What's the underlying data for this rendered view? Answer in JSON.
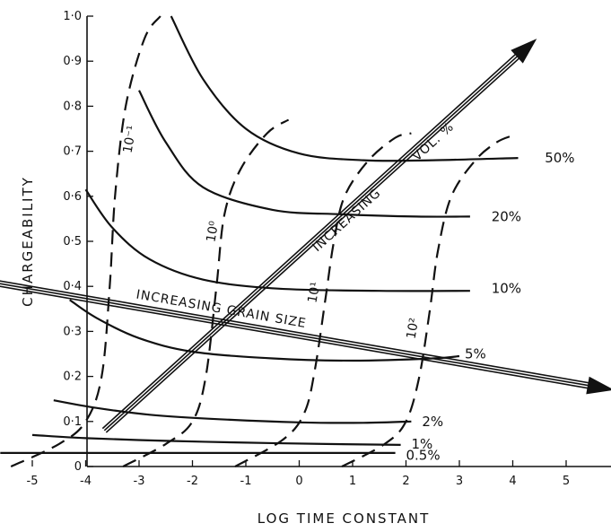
{
  "chart_data": {
    "type": "line",
    "title": "",
    "xlabel": "LOG TIME CONSTANT",
    "ylabel": "CHARGEABILITY",
    "xlim": [
      -6,
      6
    ],
    "ylim": [
      0,
      1.0
    ],
    "grid": false,
    "x_ticks": [
      {
        "value": -5,
        "label": "-5"
      },
      {
        "value": -4,
        "label": "-4"
      },
      {
        "value": -3,
        "label": "-3"
      },
      {
        "value": -2,
        "label": "-2"
      },
      {
        "value": -1,
        "label": "-1"
      },
      {
        "value": 0,
        "label": "0"
      },
      {
        "value": 1,
        "label": "1"
      },
      {
        "value": 2,
        "label": "2"
      },
      {
        "value": 3,
        "label": "3"
      },
      {
        "value": 4,
        "label": "4"
      },
      {
        "value": 5,
        "label": "5"
      }
    ],
    "y_ticks": [
      {
        "value": 0,
        "label": "0"
      },
      {
        "value": 0.1,
        "label": "0·1"
      },
      {
        "value": 0.2,
        "label": "0·2"
      },
      {
        "value": 0.3,
        "label": "0·3"
      },
      {
        "value": 0.4,
        "label": "0·4"
      },
      {
        "value": 0.5,
        "label": "0·5"
      },
      {
        "value": 0.6,
        "label": "0·6"
      },
      {
        "value": 0.7,
        "label": "0·7"
      },
      {
        "value": 0.8,
        "label": "0·8"
      },
      {
        "value": 0.9,
        "label": "0·9"
      },
      {
        "value": 1.0,
        "label": "1·0"
      }
    ],
    "solid_series": [
      {
        "name": "50%",
        "label_at": [
          4.6,
          0.685
        ],
        "points": [
          [
            -2.4,
            1.0
          ],
          [
            -1.8,
            0.86
          ],
          [
            -1.0,
            0.75
          ],
          [
            0.0,
            0.695
          ],
          [
            1.2,
            0.68
          ],
          [
            2.5,
            0.68
          ],
          [
            4.1,
            0.685
          ]
        ]
      },
      {
        "name": "20%",
        "label_at": [
          3.6,
          0.555
        ],
        "points": [
          [
            -3.0,
            0.835
          ],
          [
            -2.5,
            0.72
          ],
          [
            -1.8,
            0.62
          ],
          [
            -0.5,
            0.57
          ],
          [
            0.8,
            0.56
          ],
          [
            2.2,
            0.555
          ],
          [
            3.2,
            0.555
          ]
        ]
      },
      {
        "name": "10%",
        "label_at": [
          3.6,
          0.395
        ],
        "points": [
          [
            -4.0,
            0.615
          ],
          [
            -3.5,
            0.53
          ],
          [
            -2.8,
            0.46
          ],
          [
            -1.8,
            0.415
          ],
          [
            -0.4,
            0.395
          ],
          [
            1.5,
            0.39
          ],
          [
            3.2,
            0.39
          ]
        ]
      },
      {
        "name": "5%",
        "label_at": [
          3.1,
          0.25
        ],
        "points": [
          [
            -4.3,
            0.37
          ],
          [
            -3.8,
            0.33
          ],
          [
            -3.0,
            0.285
          ],
          [
            -2.0,
            0.255
          ],
          [
            -0.5,
            0.24
          ],
          [
            1.0,
            0.235
          ],
          [
            2.5,
            0.24
          ],
          [
            3.0,
            0.245
          ]
        ]
      },
      {
        "name": "2%",
        "label_at": [
          2.3,
          0.1
        ],
        "points": [
          [
            -4.6,
            0.147
          ],
          [
            -3.8,
            0.13
          ],
          [
            -2.8,
            0.115
          ],
          [
            -1.5,
            0.105
          ],
          [
            0.0,
            0.098
          ],
          [
            1.2,
            0.097
          ],
          [
            2.1,
            0.1
          ]
        ]
      },
      {
        "name": "1%",
        "label_at": [
          2.1,
          0.05
        ],
        "points": [
          [
            -5.0,
            0.07
          ],
          [
            -4.0,
            0.063
          ],
          [
            -2.5,
            0.057
          ],
          [
            -1.0,
            0.053
          ],
          [
            0.5,
            0.05
          ],
          [
            1.9,
            0.048
          ]
        ]
      },
      {
        "name": "0.5%",
        "label_at": [
          2.0,
          0.025
        ],
        "points": [
          [
            -5.6,
            0.03
          ],
          [
            -4.0,
            0.03
          ],
          [
            -2.0,
            0.03
          ],
          [
            0.0,
            0.03
          ],
          [
            1.8,
            0.03
          ]
        ]
      }
    ],
    "dashed_series": [
      {
        "name": "10⁻¹",
        "label_at": [
          -3.1,
          0.725
        ],
        "label_angle": -80,
        "points": [
          [
            -5.4,
            0.0
          ],
          [
            -4.5,
            0.05
          ],
          [
            -4.0,
            0.1
          ],
          [
            -3.7,
            0.2
          ],
          [
            -3.55,
            0.4
          ],
          [
            -3.45,
            0.6
          ],
          [
            -3.25,
            0.8
          ],
          [
            -2.9,
            0.95
          ],
          [
            -2.6,
            1.0
          ]
        ]
      },
      {
        "name": "10⁰",
        "label_at": [
          -1.55,
          0.52
        ],
        "label_angle": -80,
        "points": [
          [
            -3.3,
            0.0
          ],
          [
            -2.5,
            0.05
          ],
          [
            -2.0,
            0.1
          ],
          [
            -1.75,
            0.2
          ],
          [
            -1.55,
            0.4
          ],
          [
            -1.4,
            0.56
          ],
          [
            -1.1,
            0.66
          ],
          [
            -0.6,
            0.74
          ],
          [
            -0.2,
            0.77
          ]
        ]
      },
      {
        "name": "10¹",
        "label_at": [
          0.35,
          0.385
        ],
        "label_angle": -80,
        "points": [
          [
            -1.2,
            0.0
          ],
          [
            -0.3,
            0.06
          ],
          [
            0.1,
            0.12
          ],
          [
            0.3,
            0.22
          ],
          [
            0.5,
            0.38
          ],
          [
            0.65,
            0.5
          ],
          [
            0.85,
            0.6
          ],
          [
            1.3,
            0.68
          ],
          [
            1.8,
            0.73
          ],
          [
            2.1,
            0.74
          ]
        ]
      },
      {
        "name": "10²",
        "label_at": [
          2.2,
          0.305
        ],
        "label_angle": -80,
        "points": [
          [
            0.8,
            0.0
          ],
          [
            1.6,
            0.05
          ],
          [
            2.0,
            0.1
          ],
          [
            2.25,
            0.2
          ],
          [
            2.45,
            0.35
          ],
          [
            2.6,
            0.48
          ],
          [
            2.85,
            0.6
          ],
          [
            3.3,
            0.68
          ],
          [
            3.7,
            0.72
          ],
          [
            4.0,
            0.735
          ]
        ]
      }
    ],
    "arrows": [
      {
        "label": "INCREASING   GRAIN   SIZE",
        "from": [
          -5.8,
          0.41
        ],
        "to": [
          5.9,
          0.17
        ]
      },
      {
        "label": "INCREASING",
        "label2": "VOL. %",
        "from": [
          -3.65,
          0.08
        ],
        "to": [
          4.45,
          0.95
        ]
      }
    ]
  }
}
